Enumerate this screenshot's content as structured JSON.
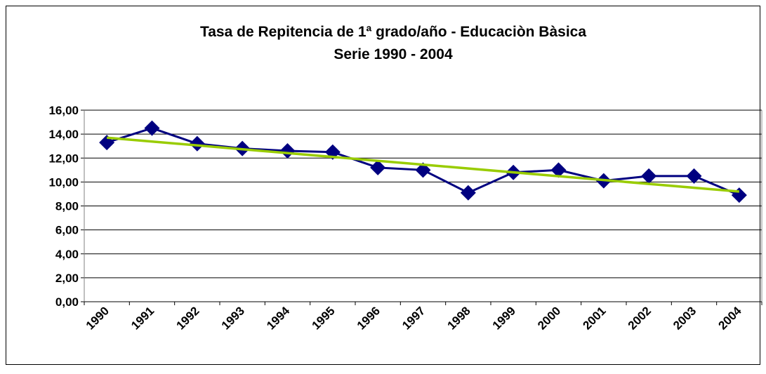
{
  "chart_data": {
    "type": "line",
    "title": "Tasa de Repitencia de 1ª grado/año - Educaciòn Bàsica",
    "subtitle": "Serie 1990 - 2004",
    "categories": [
      "1990",
      "1991",
      "1992",
      "1993",
      "1994",
      "1995",
      "1996",
      "1997",
      "1998",
      "1999",
      "2000",
      "2001",
      "2002",
      "2003",
      "2004"
    ],
    "series": [
      {
        "color": "#000080",
        "values": [
          13.3,
          14.5,
          13.2,
          12.8,
          12.6,
          12.5,
          11.2,
          11.0,
          9.1,
          10.8,
          11.0,
          10.1,
          10.5,
          10.5,
          8.9
        ]
      }
    ],
    "trendline": {
      "color": "#99cc00",
      "values": [
        13.7,
        9.2
      ]
    },
    "ylim": [
      0,
      16
    ],
    "yticks": [
      {
        "value": 0,
        "label": "0,00"
      },
      {
        "value": 2,
        "label": "2,00"
      },
      {
        "value": 4,
        "label": "4,00"
      },
      {
        "value": 6,
        "label": "6,00"
      },
      {
        "value": 8,
        "label": "8,00"
      },
      {
        "value": 10,
        "label": "10,00"
      },
      {
        "value": 12,
        "label": "12,00"
      },
      {
        "value": 14,
        "label": "14,00"
      },
      {
        "value": 16,
        "label": "16,00"
      }
    ],
    "grid": true
  }
}
